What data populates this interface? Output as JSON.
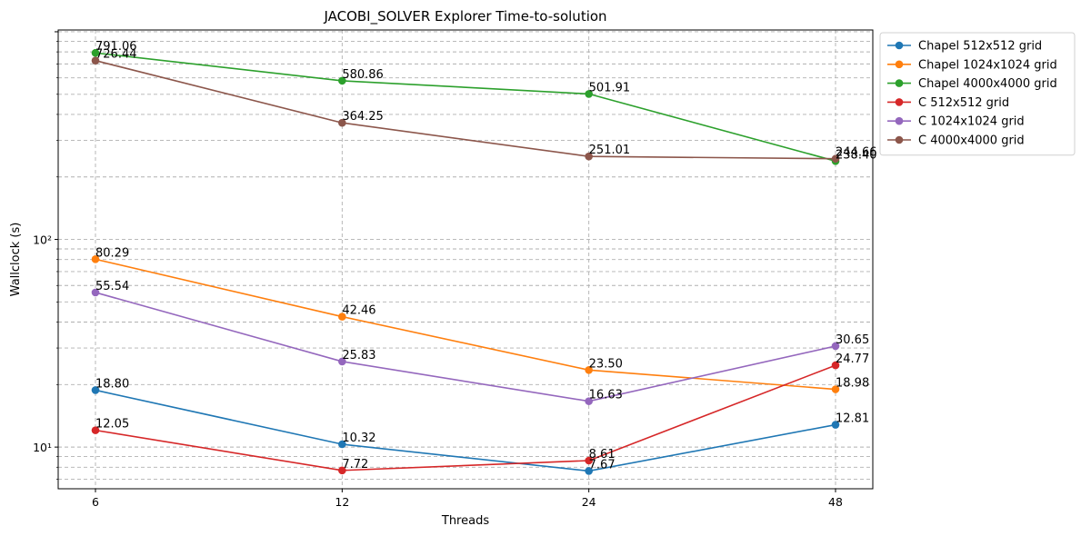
{
  "chart_data": {
    "type": "line",
    "title": "JACOBI_SOLVER Explorer Time-to-solution",
    "xlabel": "Threads",
    "ylabel": "Wallclock (s)",
    "x": [
      6,
      12,
      24,
      48
    ],
    "x_tick_labels": [
      "6",
      "12",
      "24",
      "48"
    ],
    "y_scale": "log",
    "ylim": [
      6.3,
      1020
    ],
    "y_tick_values": [
      10,
      100
    ],
    "y_tick_labels": [
      "10¹",
      "10²"
    ],
    "grid": true,
    "legend_position": "outside-top-right",
    "series": [
      {
        "name": "Chapel 512x512 grid",
        "color": "#1f77b4",
        "values": [
          18.8,
          10.32,
          7.67,
          12.81
        ],
        "labels": [
          "18.80",
          "10.32",
          "7.67",
          "12.81"
        ]
      },
      {
        "name": "Chapel 1024x1024 grid",
        "color": "#ff7f0e",
        "values": [
          80.29,
          42.46,
          23.5,
          18.98
        ],
        "labels": [
          "80.29",
          "42.46",
          "23.50",
          "18.98"
        ]
      },
      {
        "name": "Chapel 4000x4000 grid",
        "color": "#2ca02c",
        "values": [
          791.06,
          580.86,
          501.91,
          238.4
        ],
        "labels": [
          "791.06",
          "580.86",
          "501.91",
          "238.40"
        ]
      },
      {
        "name": "C 512x512 grid",
        "color": "#d62728",
        "values": [
          12.05,
          7.72,
          8.61,
          24.77
        ],
        "labels": [
          "12.05",
          "7.72",
          "8.61",
          "24.77"
        ]
      },
      {
        "name": "C 1024x1024 grid",
        "color": "#9467bd",
        "values": [
          55.54,
          25.83,
          16.63,
          30.65
        ],
        "labels": [
          "55.54",
          "25.83",
          "16.63",
          "30.65"
        ]
      },
      {
        "name": "C 4000x4000 grid",
        "color": "#8c564b",
        "values": [
          726.44,
          364.25,
          251.01,
          244.66
        ],
        "labels": [
          "726.44",
          "364.25",
          "251.01",
          "244.66"
        ]
      }
    ]
  }
}
